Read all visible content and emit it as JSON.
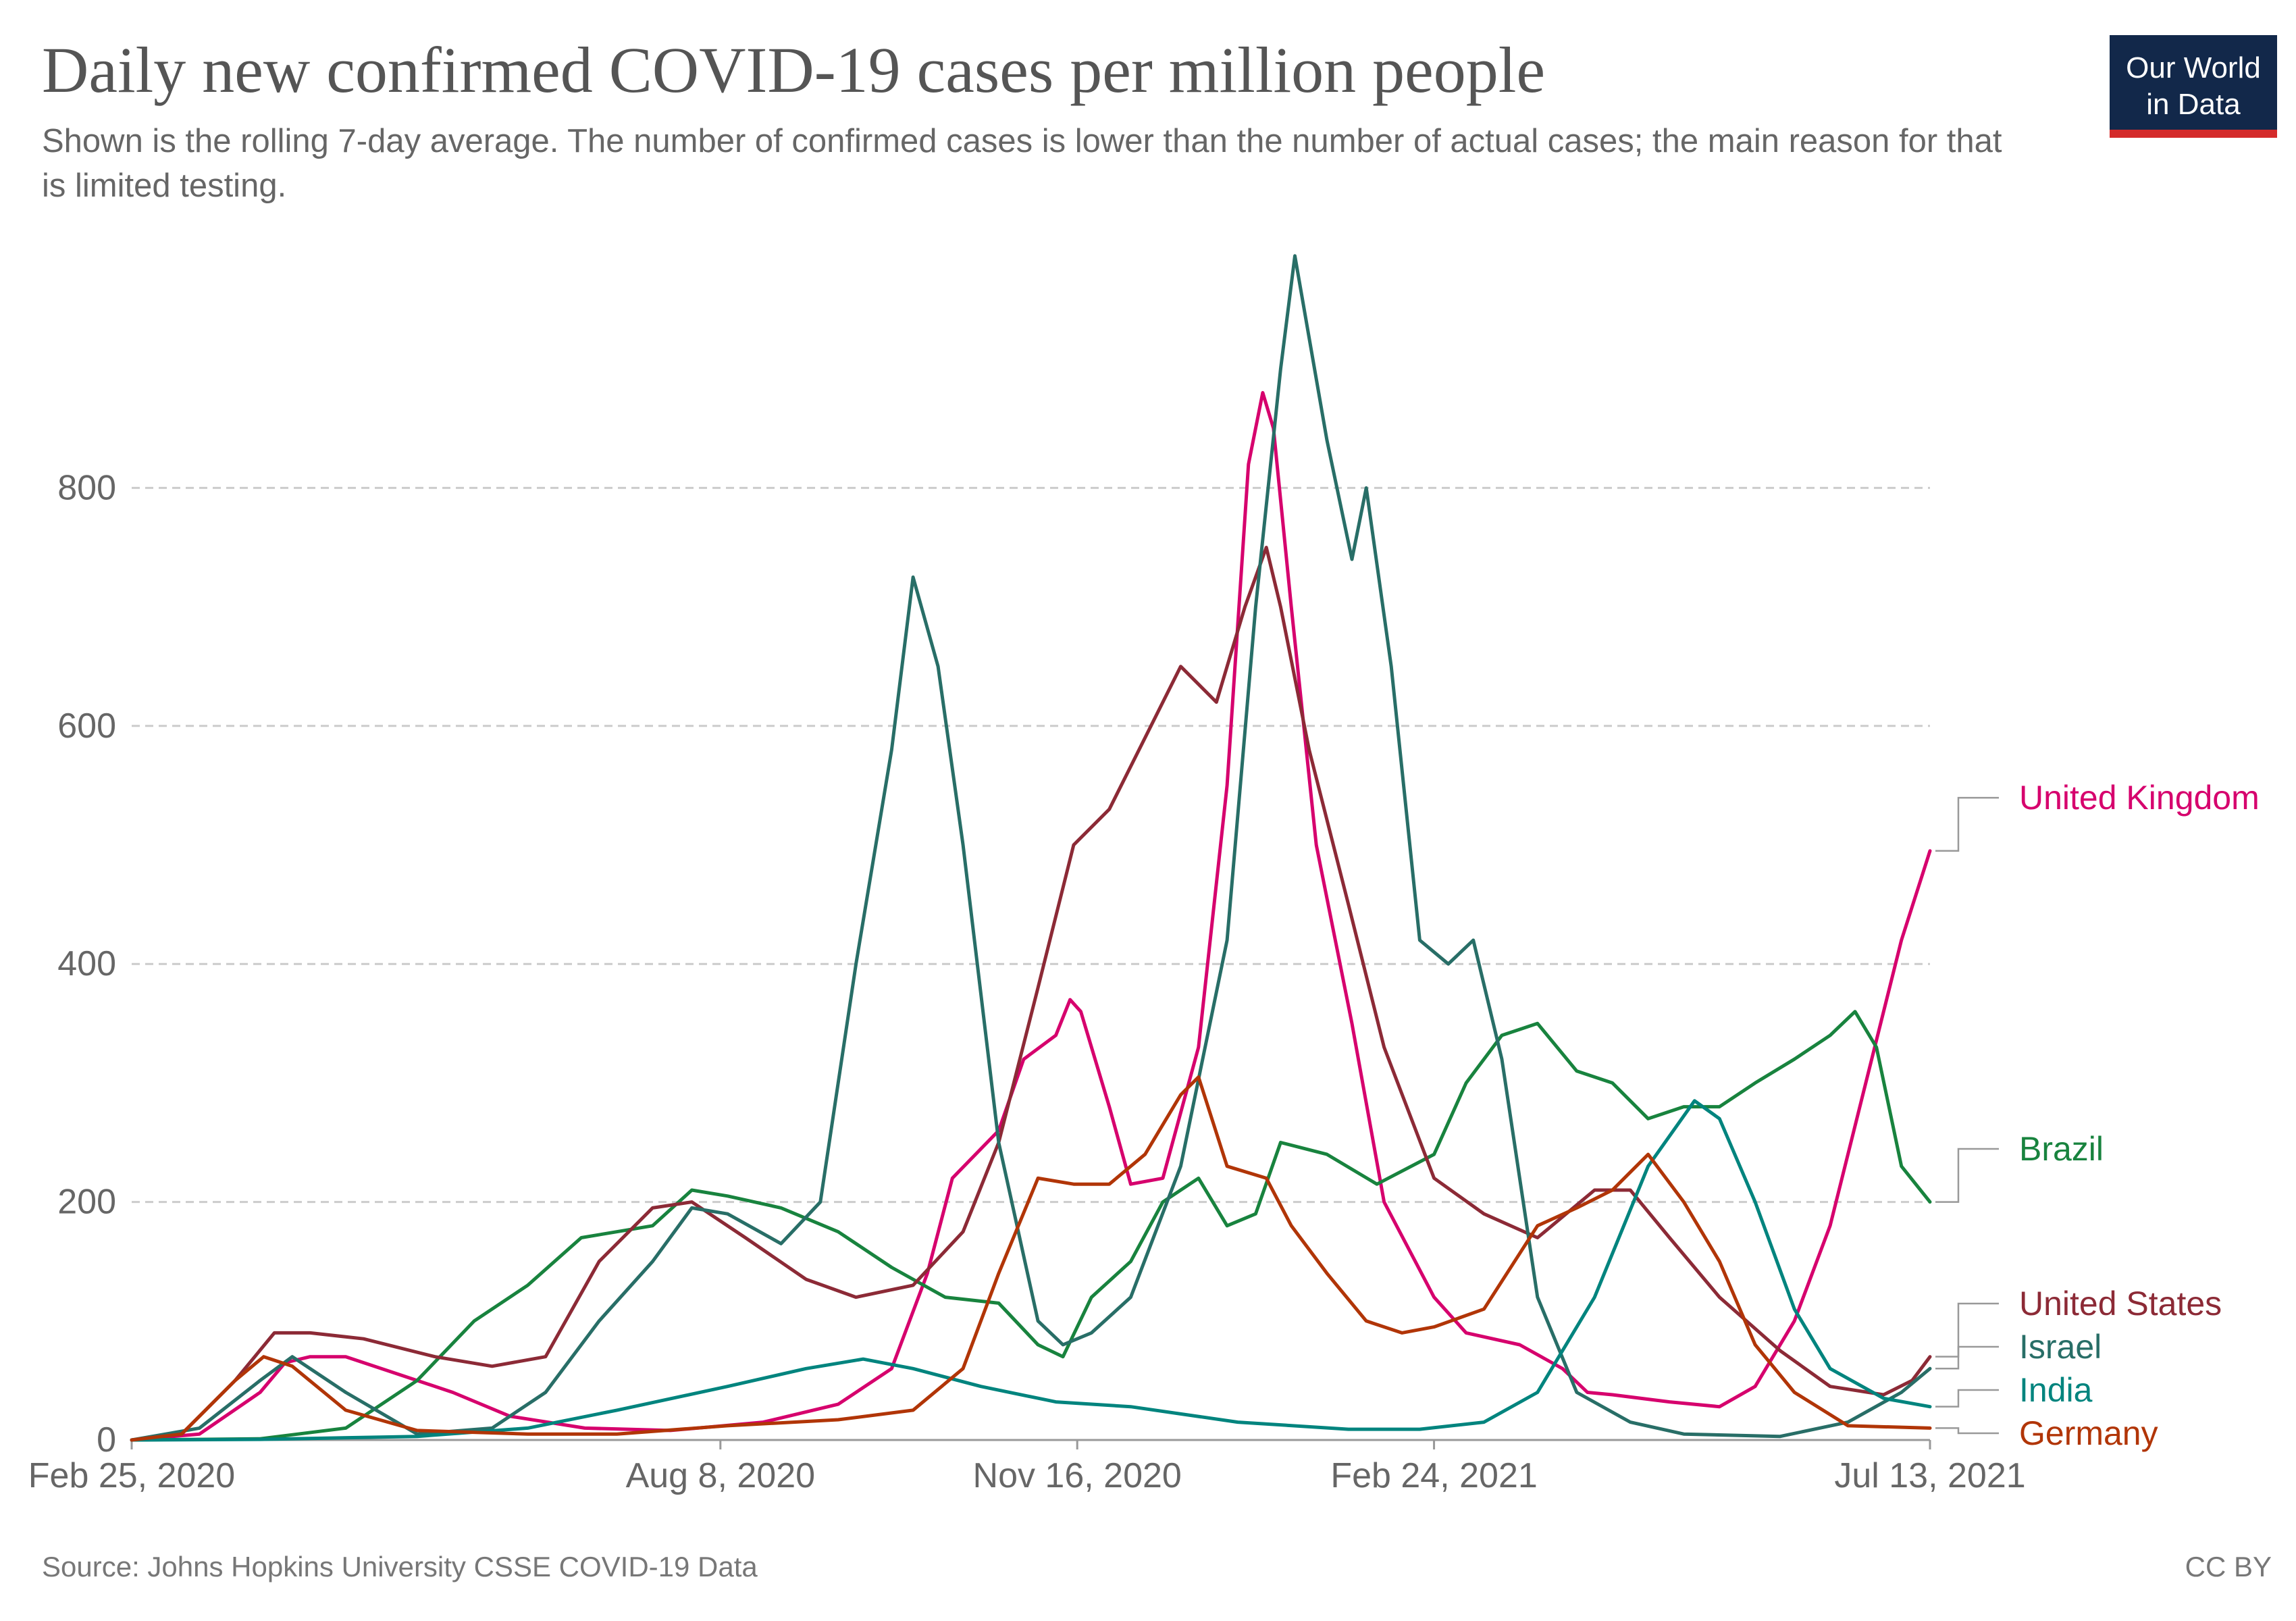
{
  "header": {
    "title": "Daily new confirmed COVID-19 cases per million people",
    "subtitle": "Shown is the rolling 7-day average. The number of confirmed cases is lower than the number of actual cases; the main reason for that is limited testing."
  },
  "logo": {
    "line1": "Our World",
    "line2": "in Data"
  },
  "footer": {
    "source": "Source: Johns Hopkins University CSSE COVID-19 Data",
    "license": "CC BY"
  },
  "colors": {
    "grid": "#cccccc",
    "tick_text": "#666666",
    "connector": "#999999"
  },
  "chart_data": {
    "type": "line",
    "title": "Daily new confirmed COVID-19 cases per million people",
    "x_range": [
      "2020-02-25",
      "2021-07-13"
    ],
    "x_ticks": [
      {
        "date": "2020-02-25",
        "label": "Feb 25, 2020"
      },
      {
        "date": "2020-08-08",
        "label": "Aug 8, 2020"
      },
      {
        "date": "2020-11-16",
        "label": "Nov 16, 2020"
      },
      {
        "date": "2021-02-24",
        "label": "Feb 24, 2021"
      },
      {
        "date": "2021-07-13",
        "label": "Jul 13, 2021"
      }
    ],
    "ylim": [
      0,
      1000
    ],
    "y_ticks": [
      0,
      200,
      400,
      600,
      800
    ],
    "grid": true,
    "legend": "right-end labels",
    "series": [
      {
        "name": "United Kingdom",
        "color": "#d6006d",
        "points": [
          [
            "2020-02-25",
            0
          ],
          [
            "2020-03-15",
            5
          ],
          [
            "2020-04-01",
            40
          ],
          [
            "2020-04-08",
            65
          ],
          [
            "2020-04-15",
            70
          ],
          [
            "2020-04-25",
            70
          ],
          [
            "2020-05-10",
            55
          ],
          [
            "2020-05-25",
            40
          ],
          [
            "2020-06-10",
            20
          ],
          [
            "2020-07-01",
            10
          ],
          [
            "2020-07-25",
            8
          ],
          [
            "2020-08-20",
            15
          ],
          [
            "2020-09-10",
            30
          ],
          [
            "2020-09-25",
            60
          ],
          [
            "2020-10-05",
            140
          ],
          [
            "2020-10-12",
            220
          ],
          [
            "2020-10-25",
            260
          ],
          [
            "2020-11-01",
            320
          ],
          [
            "2020-11-10",
            340
          ],
          [
            "2020-11-14",
            370
          ],
          [
            "2020-11-17",
            360
          ],
          [
            "2020-11-25",
            280
          ],
          [
            "2020-12-01",
            215
          ],
          [
            "2020-12-10",
            220
          ],
          [
            "2020-12-20",
            330
          ],
          [
            "2020-12-28",
            550
          ],
          [
            "2021-01-03",
            820
          ],
          [
            "2021-01-07",
            880
          ],
          [
            "2021-01-10",
            850
          ],
          [
            "2021-01-15",
            700
          ],
          [
            "2021-01-22",
            500
          ],
          [
            "2021-02-01",
            350
          ],
          [
            "2021-02-10",
            200
          ],
          [
            "2021-02-24",
            120
          ],
          [
            "2021-03-05",
            90
          ],
          [
            "2021-03-20",
            80
          ],
          [
            "2021-04-01",
            60
          ],
          [
            "2021-04-08",
            40
          ],
          [
            "2021-04-15",
            38
          ],
          [
            "2021-05-01",
            32
          ],
          [
            "2021-05-15",
            28
          ],
          [
            "2021-05-25",
            45
          ],
          [
            "2021-06-05",
            100
          ],
          [
            "2021-06-15",
            180
          ],
          [
            "2021-06-25",
            300
          ],
          [
            "2021-07-05",
            420
          ],
          [
            "2021-07-13",
            495
          ]
        ]
      },
      {
        "name": "Brazil",
        "color": "#18833e",
        "points": [
          [
            "2020-02-25",
            0
          ],
          [
            "2020-04-01",
            1
          ],
          [
            "2020-04-25",
            10
          ],
          [
            "2020-05-15",
            50
          ],
          [
            "2020-05-31",
            100
          ],
          [
            "2020-06-15",
            130
          ],
          [
            "2020-06-30",
            170
          ],
          [
            "2020-07-20",
            180
          ],
          [
            "2020-07-31",
            210
          ],
          [
            "2020-08-10",
            205
          ],
          [
            "2020-08-25",
            195
          ],
          [
            "2020-09-10",
            175
          ],
          [
            "2020-09-25",
            145
          ],
          [
            "2020-10-10",
            120
          ],
          [
            "2020-10-25",
            115
          ],
          [
            "2020-11-05",
            80
          ],
          [
            "2020-11-12",
            70
          ],
          [
            "2020-11-20",
            120
          ],
          [
            "2020-12-01",
            150
          ],
          [
            "2020-12-10",
            200
          ],
          [
            "2020-12-20",
            220
          ],
          [
            "2020-12-28",
            180
          ],
          [
            "2021-01-05",
            190
          ],
          [
            "2021-01-12",
            250
          ],
          [
            "2021-01-25",
            240
          ],
          [
            "2021-02-08",
            215
          ],
          [
            "2021-02-24",
            240
          ],
          [
            "2021-03-05",
            300
          ],
          [
            "2021-03-15",
            340
          ],
          [
            "2021-03-25",
            350
          ],
          [
            "2021-04-05",
            310
          ],
          [
            "2021-04-15",
            300
          ],
          [
            "2021-04-25",
            270
          ],
          [
            "2021-05-05",
            280
          ],
          [
            "2021-05-15",
            280
          ],
          [
            "2021-05-25",
            300
          ],
          [
            "2021-06-05",
            320
          ],
          [
            "2021-06-15",
            340
          ],
          [
            "2021-06-22",
            360
          ],
          [
            "2021-06-28",
            330
          ],
          [
            "2021-07-05",
            230
          ],
          [
            "2021-07-13",
            200
          ]
        ]
      },
      {
        "name": "United States",
        "color": "#8c2a36",
        "points": [
          [
            "2020-02-25",
            0
          ],
          [
            "2020-03-10",
            5
          ],
          [
            "2020-03-25",
            50
          ],
          [
            "2020-04-05",
            90
          ],
          [
            "2020-04-15",
            90
          ],
          [
            "2020-04-30",
            85
          ],
          [
            "2020-05-20",
            70
          ],
          [
            "2020-06-05",
            62
          ],
          [
            "2020-06-20",
            70
          ],
          [
            "2020-07-05",
            150
          ],
          [
            "2020-07-20",
            195
          ],
          [
            "2020-07-31",
            200
          ],
          [
            "2020-08-15",
            170
          ],
          [
            "2020-09-01",
            135
          ],
          [
            "2020-09-15",
            120
          ],
          [
            "2020-10-01",
            130
          ],
          [
            "2020-10-15",
            175
          ],
          [
            "2020-10-25",
            250
          ],
          [
            "2020-11-05",
            380
          ],
          [
            "2020-11-15",
            500
          ],
          [
            "2020-11-25",
            530
          ],
          [
            "2020-12-05",
            590
          ],
          [
            "2020-12-15",
            650
          ],
          [
            "2020-12-25",
            620
          ],
          [
            "2021-01-02",
            700
          ],
          [
            "2021-01-08",
            750
          ],
          [
            "2021-01-12",
            700
          ],
          [
            "2021-01-20",
            580
          ],
          [
            "2021-01-31",
            450
          ],
          [
            "2021-02-10",
            330
          ],
          [
            "2021-02-24",
            220
          ],
          [
            "2021-03-10",
            190
          ],
          [
            "2021-03-25",
            170
          ],
          [
            "2021-04-10",
            210
          ],
          [
            "2021-04-20",
            210
          ],
          [
            "2021-05-01",
            170
          ],
          [
            "2021-05-15",
            120
          ],
          [
            "2021-06-01",
            75
          ],
          [
            "2021-06-15",
            45
          ],
          [
            "2021-06-30",
            38
          ],
          [
            "2021-07-08",
            50
          ],
          [
            "2021-07-13",
            70
          ]
        ]
      },
      {
        "name": "Israel",
        "color": "#286e67",
        "points": [
          [
            "2020-02-25",
            0
          ],
          [
            "2020-03-15",
            10
          ],
          [
            "2020-04-01",
            50
          ],
          [
            "2020-04-10",
            70
          ],
          [
            "2020-04-25",
            40
          ],
          [
            "2020-05-15",
            5
          ],
          [
            "2020-06-05",
            10
          ],
          [
            "2020-06-20",
            40
          ],
          [
            "2020-07-05",
            100
          ],
          [
            "2020-07-20",
            150
          ],
          [
            "2020-07-31",
            195
          ],
          [
            "2020-08-10",
            190
          ],
          [
            "2020-08-25",
            165
          ],
          [
            "2020-09-05",
            200
          ],
          [
            "2020-09-15",
            400
          ],
          [
            "2020-09-25",
            580
          ],
          [
            "2020-10-01",
            725
          ],
          [
            "2020-10-08",
            650
          ],
          [
            "2020-10-15",
            500
          ],
          [
            "2020-10-25",
            250
          ],
          [
            "2020-11-05",
            100
          ],
          [
            "2020-11-12",
            80
          ],
          [
            "2020-11-20",
            90
          ],
          [
            "2020-12-01",
            120
          ],
          [
            "2020-12-15",
            230
          ],
          [
            "2020-12-28",
            420
          ],
          [
            "2021-01-05",
            700
          ],
          [
            "2021-01-12",
            900
          ],
          [
            "2021-01-16",
            995
          ],
          [
            "2021-01-25",
            840
          ],
          [
            "2021-02-01",
            740
          ],
          [
            "2021-02-05",
            800
          ],
          [
            "2021-02-12",
            650
          ],
          [
            "2021-02-20",
            420
          ],
          [
            "2021-02-28",
            400
          ],
          [
            "2021-03-07",
            420
          ],
          [
            "2021-03-15",
            320
          ],
          [
            "2021-03-25",
            120
          ],
          [
            "2021-04-05",
            40
          ],
          [
            "2021-04-20",
            15
          ],
          [
            "2021-05-05",
            5
          ],
          [
            "2021-06-01",
            3
          ],
          [
            "2021-06-20",
            15
          ],
          [
            "2021-07-05",
            40
          ],
          [
            "2021-07-13",
            60
          ]
        ]
      },
      {
        "name": "India",
        "color": "#00847e",
        "points": [
          [
            "2020-02-25",
            0
          ],
          [
            "2020-04-01",
            0.5
          ],
          [
            "2020-05-15",
            3
          ],
          [
            "2020-06-15",
            10
          ],
          [
            "2020-07-10",
            25
          ],
          [
            "2020-08-10",
            45
          ],
          [
            "2020-09-01",
            60
          ],
          [
            "2020-09-17",
            68
          ],
          [
            "2020-10-01",
            60
          ],
          [
            "2020-10-20",
            45
          ],
          [
            "2020-11-10",
            32
          ],
          [
            "2020-12-01",
            28
          ],
          [
            "2020-12-31",
            15
          ],
          [
            "2021-01-31",
            9
          ],
          [
            "2021-02-20",
            9
          ],
          [
            "2021-03-10",
            15
          ],
          [
            "2021-03-25",
            40
          ],
          [
            "2021-04-10",
            120
          ],
          [
            "2021-04-25",
            230
          ],
          [
            "2021-05-08",
            285
          ],
          [
            "2021-05-15",
            270
          ],
          [
            "2021-05-25",
            200
          ],
          [
            "2021-06-05",
            110
          ],
          [
            "2021-06-15",
            60
          ],
          [
            "2021-06-30",
            35
          ],
          [
            "2021-07-13",
            28
          ]
        ]
      },
      {
        "name": "Germany",
        "color": "#b13507",
        "points": [
          [
            "2020-02-25",
            0
          ],
          [
            "2020-03-10",
            5
          ],
          [
            "2020-03-25",
            50
          ],
          [
            "2020-04-02",
            70
          ],
          [
            "2020-04-10",
            62
          ],
          [
            "2020-04-25",
            25
          ],
          [
            "2020-05-15",
            8
          ],
          [
            "2020-06-15",
            5
          ],
          [
            "2020-07-10",
            5
          ],
          [
            "2020-08-10",
            12
          ],
          [
            "2020-09-10",
            17
          ],
          [
            "2020-10-01",
            25
          ],
          [
            "2020-10-15",
            60
          ],
          [
            "2020-10-25",
            140
          ],
          [
            "2020-11-05",
            220
          ],
          [
            "2020-11-15",
            215
          ],
          [
            "2020-11-25",
            215
          ],
          [
            "2020-12-05",
            240
          ],
          [
            "2020-12-15",
            290
          ],
          [
            "2020-12-20",
            305
          ],
          [
            "2020-12-28",
            230
          ],
          [
            "2021-01-08",
            220
          ],
          [
            "2021-01-15",
            180
          ],
          [
            "2021-01-25",
            140
          ],
          [
            "2021-02-05",
            100
          ],
          [
            "2021-02-15",
            90
          ],
          [
            "2021-02-24",
            95
          ],
          [
            "2021-03-10",
            110
          ],
          [
            "2021-03-25",
            180
          ],
          [
            "2021-04-05",
            195
          ],
          [
            "2021-04-15",
            210
          ],
          [
            "2021-04-25",
            240
          ],
          [
            "2021-05-05",
            200
          ],
          [
            "2021-05-15",
            150
          ],
          [
            "2021-05-25",
            80
          ],
          [
            "2021-06-05",
            40
          ],
          [
            "2021-06-20",
            12
          ],
          [
            "2021-07-13",
            10
          ]
        ]
      }
    ]
  }
}
